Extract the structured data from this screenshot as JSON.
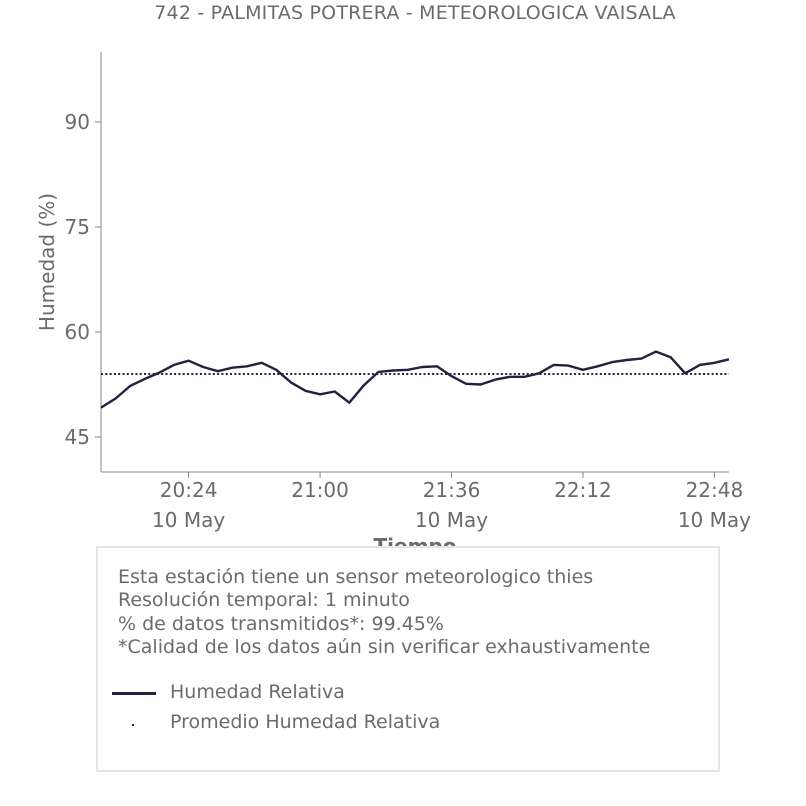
{
  "title": "742 - PALMITAS POTRERA - METEOROLOGICA VAISALA",
  "info": {
    "line1": "Esta estación tiene un sensor meteorologico thies",
    "line2": "Resolución temporal: 1 minuto",
    "line3": "% de datos transmitidos*: 99.45%",
    "line4": "*Calidad de los datos aún sin verificar exhaustivamente"
  },
  "legend": {
    "series_label": "Humedad Relativa",
    "average_label": "Promedio Humedad Relativa"
  },
  "colors": {
    "series": "#22223f",
    "text": "#6b6b6b",
    "axis": "#888888"
  },
  "chart_data": {
    "type": "line",
    "xlabel": "Tiempo",
    "ylabel": "Humedad (%)",
    "x_range": [
      "20:00",
      "22:52"
    ],
    "ylim": [
      40,
      100
    ],
    "yticks": [
      45,
      60,
      75,
      90
    ],
    "xticks": [
      {
        "time": "20:24",
        "date": "10 May"
      },
      {
        "time": "21:00",
        "date": ""
      },
      {
        "time": "21:36",
        "date": "10 May"
      },
      {
        "time": "22:12",
        "date": ""
      },
      {
        "time": "22:48",
        "date": "10 May"
      }
    ],
    "grid": false,
    "average": 54,
    "series": [
      {
        "name": "Humedad Relativa",
        "x": [
          "20:00",
          "20:04",
          "20:08",
          "20:12",
          "20:16",
          "20:20",
          "20:24",
          "20:28",
          "20:32",
          "20:36",
          "20:40",
          "20:44",
          "20:48",
          "20:52",
          "20:56",
          "21:00",
          "21:04",
          "21:08",
          "21:12",
          "21:16",
          "21:20",
          "21:24",
          "21:28",
          "21:32",
          "21:36",
          "21:40",
          "21:44",
          "21:48",
          "21:52",
          "21:56",
          "22:00",
          "22:04",
          "22:08",
          "22:12",
          "22:16",
          "22:20",
          "22:24",
          "22:28",
          "22:32",
          "22:36",
          "22:40",
          "22:44",
          "22:48",
          "22:52"
        ],
        "values": [
          49.2,
          50.5,
          52.3,
          53.3,
          54.2,
          55.3,
          55.9,
          55.0,
          54.4,
          54.9,
          55.1,
          55.6,
          54.6,
          52.8,
          51.6,
          51.1,
          51.5,
          49.9,
          52.4,
          54.3,
          54.5,
          54.6,
          55.0,
          55.1,
          53.7,
          52.6,
          52.5,
          53.2,
          53.6,
          53.6,
          54.1,
          55.3,
          55.2,
          54.6,
          55.1,
          55.7,
          56.0,
          56.2,
          57.2,
          56.4,
          54.1,
          55.3,
          55.6,
          56.1
        ]
      }
    ]
  }
}
